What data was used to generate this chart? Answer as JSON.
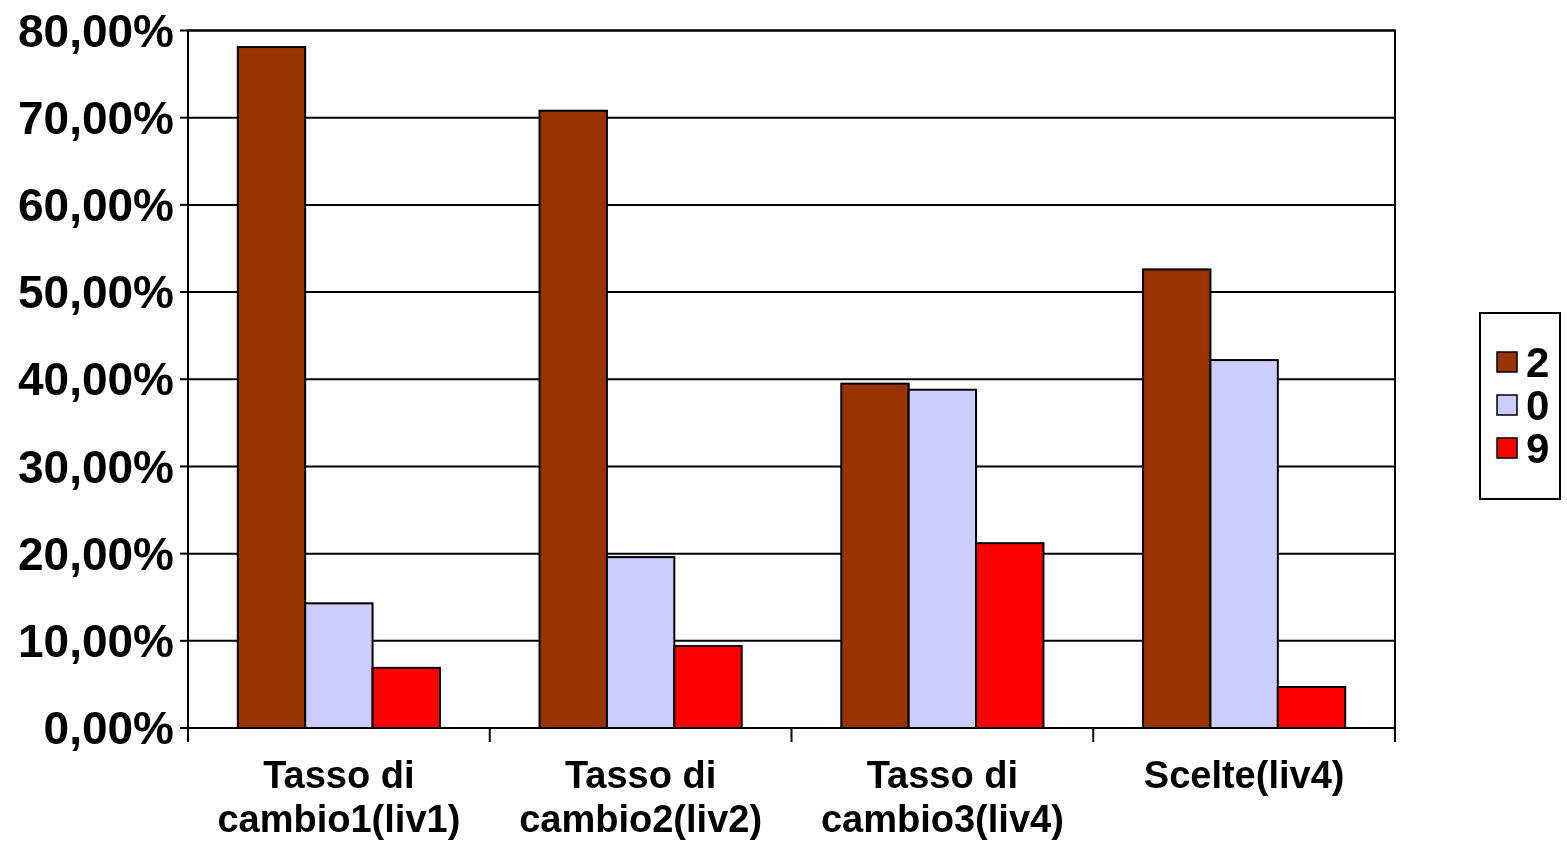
{
  "chart_data": {
    "type": "bar",
    "categories": [
      "Tasso di cambio1(liv1)",
      "Tasso di cambio2(liv2)",
      "Tasso di cambio3(liv4)",
      "Scelte(liv4)"
    ],
    "series": [
      {
        "name": "2",
        "color": "#993300",
        "values": [
          78.1,
          70.8,
          39.5,
          52.6
        ]
      },
      {
        "name": "0",
        "color": "#ccccff",
        "values": [
          14.3,
          19.6,
          38.8,
          42.2
        ]
      },
      {
        "name": "9",
        "color": "#ff0000",
        "values": [
          6.9,
          9.4,
          21.2,
          4.7
        ]
      }
    ],
    "ylim": [
      0,
      80
    ],
    "yticks": [
      {
        "value": 0,
        "label": "0,00%"
      },
      {
        "value": 10,
        "label": "10,00%"
      },
      {
        "value": 20,
        "label": "20,00%"
      },
      {
        "value": 30,
        "label": "30,00%"
      },
      {
        "value": 40,
        "label": "40,00%"
      },
      {
        "value": 50,
        "label": "50,00%"
      },
      {
        "value": 60,
        "label": "60,00%"
      },
      {
        "value": 70,
        "label": "70,00%"
      },
      {
        "value": 80,
        "label": "80,00%"
      }
    ],
    "grid": "y",
    "legend": "right"
  }
}
